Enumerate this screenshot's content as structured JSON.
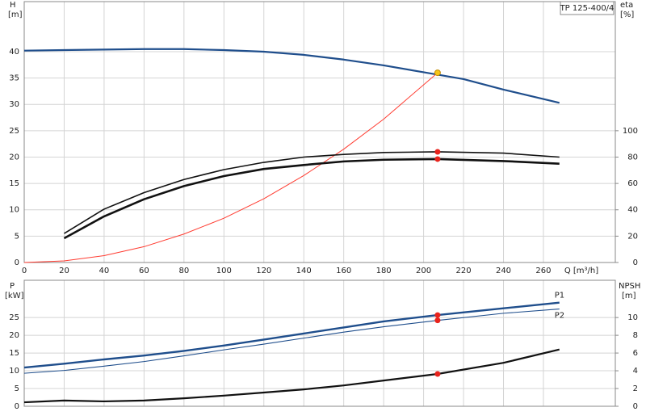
{
  "chart_data": [
    {
      "type": "line",
      "title": "TP 125-400/4",
      "x_label": "Q [m³/h]",
      "y_label": "H",
      "y_unit": "[m]",
      "y2_label": "eta",
      "y2_unit": "[%]",
      "xlim": [
        0,
        296
      ],
      "ylim": [
        0,
        49.5
      ],
      "y2lim": [
        0,
        198
      ],
      "xticks": [
        0,
        20,
        40,
        60,
        80,
        100,
        120,
        140,
        160,
        180,
        200,
        220,
        240,
        260
      ],
      "yticks": [
        0,
        5,
        10,
        15,
        20,
        25,
        30,
        35,
        40
      ],
      "y2ticks": [
        0,
        20,
        40,
        60,
        80,
        100
      ],
      "grid": true,
      "series": [
        {
          "color": "#1f4e8c",
          "width": 2.2,
          "x": [
            0,
            20,
            40,
            60,
            80,
            100,
            120,
            140,
            160,
            180,
            200,
            220,
            240,
            268
          ],
          "values": [
            40.2,
            40.3,
            40.4,
            40.5,
            40.5,
            40.3,
            40.0,
            39.4,
            38.5,
            37.4,
            36.1,
            34.8,
            32.8,
            30.3
          ]
        },
        {
          "color": "#ff3b30",
          "width": 1,
          "x": [
            0,
            20,
            40,
            60,
            80,
            100,
            120,
            140,
            160,
            180,
            207
          ],
          "values": [
            0,
            0.3,
            1.3,
            3.0,
            5.4,
            8.4,
            12.1,
            16.5,
            21.5,
            27.2,
            36
          ]
        },
        {
          "color": "#111111",
          "width": 1.6,
          "axis": "y2",
          "x": [
            20,
            40,
            60,
            80,
            100,
            120,
            140,
            160,
            180,
            207,
            240,
            268
          ],
          "values": [
            22,
            40.5,
            53,
            63,
            70.5,
            76,
            80,
            82,
            83.5,
            84,
            83,
            80
          ]
        },
        {
          "color": "#111111",
          "width": 2.6,
          "axis": "y2",
          "x": [
            20,
            40,
            60,
            80,
            100,
            120,
            140,
            160,
            180,
            207,
            240,
            268
          ],
          "values": [
            18.4,
            35,
            48,
            58,
            65.6,
            71,
            74,
            76.7,
            78,
            78.5,
            77,
            75
          ]
        },
        {
          "color": "#f5c518",
          "marker": true,
          "x": [
            207
          ],
          "values": [
            36
          ]
        },
        {
          "color": "#e8231c",
          "marker": true,
          "axis": "y2",
          "x": [
            207,
            207
          ],
          "values": [
            84,
            78.5
          ]
        }
      ]
    },
    {
      "type": "line",
      "y_label": "P",
      "y_unit": "[kW]",
      "y2_label": "NPSH",
      "y2_unit": "[m]",
      "xlim": [
        0,
        296
      ],
      "ylim": [
        0,
        35.5
      ],
      "y2lim": [
        0,
        14.2
      ],
      "yticks": [
        0,
        5,
        10,
        15,
        20,
        25
      ],
      "y2ticks": [
        0,
        2,
        4,
        6,
        8,
        10
      ],
      "grid": true,
      "series": [
        {
          "name": "P1",
          "color": "#1f4e8c",
          "width": 2.4,
          "x": [
            0,
            20,
            40,
            60,
            80,
            100,
            120,
            140,
            160,
            180,
            207,
            240,
            268
          ],
          "values": [
            10.9,
            12,
            13.2,
            14.3,
            15.6,
            17.1,
            18.8,
            20.5,
            22.2,
            23.9,
            25.7,
            27.6,
            29.2
          ]
        },
        {
          "name": "P2",
          "color": "#1f4e8c",
          "width": 1.1,
          "x": [
            0,
            20,
            40,
            60,
            80,
            100,
            120,
            140,
            160,
            180,
            207,
            240,
            268
          ],
          "values": [
            9.3,
            10.1,
            11.3,
            12.6,
            14.2,
            15.9,
            17.5,
            19.2,
            20.9,
            22.4,
            24.2,
            26.2,
            27.4
          ]
        },
        {
          "color": "#111111",
          "width": 2.2,
          "axis": "y2",
          "x": [
            0,
            20,
            40,
            60,
            80,
            100,
            120,
            140,
            160,
            180,
            207,
            240,
            268
          ],
          "values": [
            0.45,
            0.65,
            0.55,
            0.65,
            0.9,
            1.2,
            1.55,
            1.9,
            2.35,
            2.9,
            3.64,
            4.9,
            6.4
          ]
        },
        {
          "color": "#e8231c",
          "marker": true,
          "x": [
            207,
            207
          ],
          "values": [
            25.7,
            24.2
          ]
        },
        {
          "color": "#e8231c",
          "marker": true,
          "axis": "y2",
          "x": [
            207
          ],
          "values": [
            3.64
          ]
        }
      ]
    }
  ]
}
